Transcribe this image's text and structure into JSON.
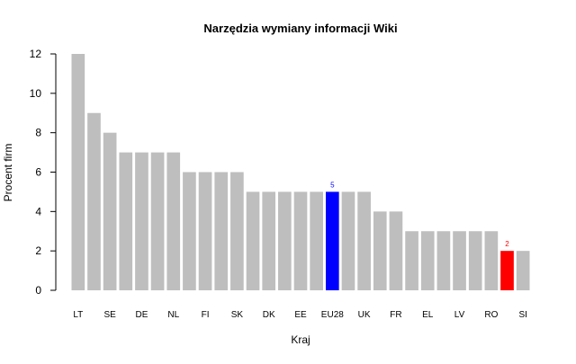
{
  "chart_data": {
    "type": "bar",
    "title": "Narzędzia wymiany informacji Wiki",
    "xlabel": "Kraj",
    "ylabel": "Procent firm",
    "ylim": [
      0,
      12
    ],
    "yticks": [
      0,
      2,
      4,
      6,
      8,
      10,
      12
    ],
    "grid": false,
    "categories": [
      "LT",
      "",
      "SE",
      "",
      "DE",
      "",
      "NL",
      "",
      "FI",
      "",
      "SK",
      "",
      "DK",
      "",
      "EE",
      "",
      "EU28",
      "",
      "UK",
      "",
      "FR",
      "",
      "EL",
      "",
      "LV",
      "",
      "RO",
      "",
      "SI"
    ],
    "values": [
      12,
      9,
      8,
      7,
      7,
      7,
      7,
      6,
      6,
      6,
      6,
      5,
      5,
      5,
      5,
      5,
      5,
      5,
      5,
      4,
      4,
      3,
      3,
      3,
      3,
      3,
      3,
      2,
      2
    ],
    "default_color": "#bebebe",
    "highlights": [
      {
        "index": 16,
        "color": "#0000ff",
        "label": "5"
      },
      {
        "index": 27,
        "color": "#ff0000",
        "label": "2"
      }
    ]
  }
}
